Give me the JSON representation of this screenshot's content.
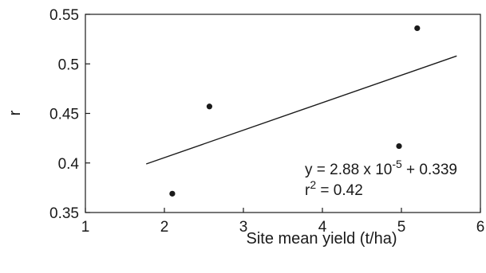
{
  "chart_data": {
    "type": "scatter",
    "title": "",
    "xlabel": "Site mean yield (t/ha)",
    "ylabel": "r",
    "xlim": [
      1,
      6
    ],
    "ylim": [
      0.35,
      0.55
    ],
    "xticks": [
      1,
      2,
      3,
      4,
      5,
      6
    ],
    "yticks": [
      0.35,
      0.4,
      0.45,
      0.5,
      0.55
    ],
    "xtick_labels": [
      "1",
      "2",
      "3",
      "4",
      "5",
      "6"
    ],
    "ytick_labels": [
      "0.35",
      "0.4",
      "0.45",
      "0.5",
      "0.55"
    ],
    "grid": false,
    "points": [
      {
        "x": 2.1,
        "y": 0.369
      },
      {
        "x": 2.57,
        "y": 0.457
      },
      {
        "x": 4.97,
        "y": 0.417
      },
      {
        "x": 5.2,
        "y": 0.536
      }
    ],
    "trendline": {
      "x": [
        1.77,
        5.7
      ],
      "y": [
        0.399,
        0.508
      ]
    },
    "annotation": {
      "equation_prefix": "y = 2.88 x 10",
      "equation_exponent": "-5",
      "equation_suffix": " + 0.339",
      "r2_prefix": "r",
      "r2_exponent": "2",
      "r2_suffix": " = 0.42"
    },
    "colors": {
      "points": "#1a1a1a",
      "line": "#1a1a1a",
      "axes": "#1a1a1a"
    }
  }
}
